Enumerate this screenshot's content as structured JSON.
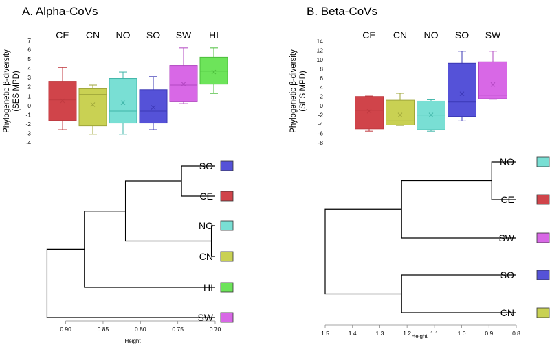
{
  "chart_data": [
    {
      "type": "box",
      "title": "A. Alpha-CoVs",
      "ylabel_line1": "Phylogenetic β-diversity",
      "ylabel_line2": "(SES MPD)",
      "ylim": [
        -4,
        7
      ],
      "yticks": [
        7,
        6,
        5,
        4,
        3,
        2,
        1,
        0,
        -1,
        -2,
        -3,
        -4
      ],
      "categories": [
        "CE",
        "CN",
        "NO",
        "SO",
        "SW",
        "HI"
      ],
      "boxes": [
        {
          "name": "CE",
          "color": "#d0444a",
          "edge": "#c03a40",
          "min": -2.6,
          "q1": -1.6,
          "median": 0.6,
          "q3": 2.6,
          "max": 4.1,
          "mean": 0.5
        },
        {
          "name": "CN",
          "color": "#c9d153",
          "edge": "#9fa63a",
          "min": -3.1,
          "q1": -2.2,
          "median": 1.2,
          "q3": 1.8,
          "max": 2.2,
          "mean": 0.1
        },
        {
          "name": "NO",
          "color": "#79dfd4",
          "edge": "#3fb5a8",
          "min": -3.1,
          "q1": -1.9,
          "median": -0.6,
          "q3": 2.9,
          "max": 3.6,
          "mean": 0.3
        },
        {
          "name": "SO",
          "color": "#5552d8",
          "edge": "#3b38b5",
          "min": -2.6,
          "q1": -1.9,
          "median": -0.6,
          "q3": 1.7,
          "max": 3.1,
          "mean": -0.2
        },
        {
          "name": "SW",
          "color": "#d868e6",
          "edge": "#b247c2",
          "min": 0.2,
          "q1": 0.4,
          "median": 2.2,
          "q3": 4.3,
          "max": 6.2,
          "mean": 2.3
        },
        {
          "name": "HI",
          "color": "#6de45a",
          "edge": "#4cbe3c",
          "min": 1.3,
          "q1": 2.3,
          "median": 3.7,
          "q3": 5.2,
          "max": 6.2,
          "mean": 3.6
        }
      ],
      "dendrogram": {
        "xlabel": "Height",
        "xticks": [
          0.9,
          0.85,
          0.8,
          0.75,
          0.7
        ],
        "xtick_labels": [
          "0.90",
          "0.85",
          "0.80",
          "0.75",
          "0.70"
        ],
        "leaves": [
          "SO",
          "CE",
          "NO",
          "CN",
          "HI",
          "SW"
        ],
        "merges": [
          {
            "a": "SO",
            "b": "CE",
            "height": 0.745
          },
          {
            "a": "NO",
            "b": "CN",
            "height": 0.705
          },
          {
            "a": "SO-CE",
            "b": "NO-CN",
            "height": 0.82
          },
          {
            "a": "SO-CE-NO-CN",
            "b": "HI",
            "height": 0.875
          },
          {
            "a": "SO-CE-NO-CN-HI",
            "b": "SW",
            "height": 0.925
          }
        ]
      }
    },
    {
      "type": "box",
      "title": "B. Beta-CoVs",
      "ylabel_line1": "Phylogenetic β-diversity",
      "ylabel_line2": "(SES MPD)",
      "ylim": [
        -8,
        14
      ],
      "yticks": [
        14,
        12,
        10,
        8,
        6,
        4,
        2,
        0,
        -2,
        -4,
        -6,
        -8
      ],
      "categories": [
        "CE",
        "CN",
        "NO",
        "SO",
        "SW"
      ],
      "boxes": [
        {
          "name": "CE",
          "color": "#d0444a",
          "edge": "#c03a40",
          "min": -5.5,
          "q1": -5.0,
          "median": -1.0,
          "q3": 2.0,
          "max": 2.1,
          "mean": -1.2
        },
        {
          "name": "CN",
          "color": "#c9d153",
          "edge": "#9fa63a",
          "min": -4.3,
          "q1": -4.2,
          "median": -3.3,
          "q3": 1.2,
          "max": 2.7,
          "mean": -2.0
        },
        {
          "name": "NO",
          "color": "#79dfd4",
          "edge": "#3fb5a8",
          "min": -5.5,
          "q1": -5.2,
          "median": -2.0,
          "q3": 1.0,
          "max": 1.3,
          "mean": -2.0
        },
        {
          "name": "SO",
          "color": "#5552d8",
          "edge": "#3b38b5",
          "min": -3.3,
          "q1": -2.3,
          "median": 0.8,
          "q3": 9.2,
          "max": 11.8,
          "mean": 2.6
        },
        {
          "name": "SW",
          "color": "#d868e6",
          "edge": "#b247c2",
          "min": 1.4,
          "q1": 1.5,
          "median": 2.3,
          "q3": 9.5,
          "max": 11.8,
          "mean": 4.6
        }
      ],
      "dendrogram": {
        "xlabel": "Height",
        "xticks": [
          1.5,
          1.4,
          1.3,
          1.2,
          1.1,
          1.0,
          0.9,
          0.8
        ],
        "xtick_labels": [
          "1.5",
          "1.4",
          "1.3",
          "1.2",
          "1.1",
          "1.0",
          "0.9",
          "0.8"
        ],
        "leaves": [
          "NO",
          "CE",
          "SW",
          "SO",
          "CN"
        ],
        "merges": [
          {
            "a": "NO",
            "b": "CE",
            "height": 0.89
          },
          {
            "a": "SO",
            "b": "CN",
            "height": 1.22
          },
          {
            "a": "NO-CE",
            "b": "SW",
            "height": 1.22
          },
          {
            "a": "NO-CE-SW",
            "b": "SO-CN",
            "height": 1.5
          }
        ]
      }
    }
  ]
}
